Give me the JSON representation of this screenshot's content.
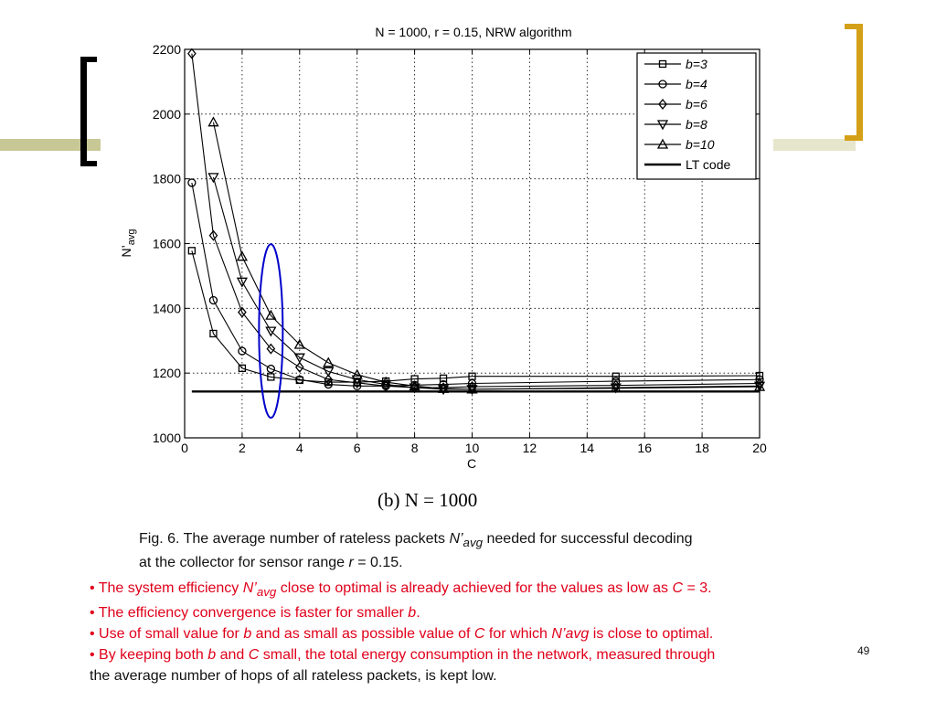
{
  "caption_sub": "(b) N = 1000",
  "figure_caption": {
    "line1_pre": "Fig. 6. The average number of rateless packets ",
    "line1_var": "N’",
    "line1_sub": "avg",
    "line1_post": " needed for successful decoding",
    "line2_pre": "at the collector for sensor range ",
    "line2_var": "r",
    "line2_post": " = 0.15."
  },
  "bullets": [
    {
      "parts": [
        {
          "t": "• The system efficiency "
        },
        {
          "t": "N’",
          "i": true
        },
        {
          "t": "avg",
          "i": true,
          "sub": true
        },
        {
          "t": " close to optimal is already achieved for the values as low as "
        },
        {
          "t": "C",
          "i": true
        },
        {
          "t": " = 3."
        }
      ]
    },
    {
      "parts": [
        {
          "t": "• The efficiency convergence is faster for smaller "
        },
        {
          "t": "b",
          "i": true
        },
        {
          "t": "."
        }
      ]
    },
    {
      "parts": [
        {
          "t": "• Use of small value for "
        },
        {
          "t": "b",
          "i": true
        },
        {
          "t": " and as small as possible value of "
        },
        {
          "t": "C",
          "i": true
        },
        {
          "t": " for which "
        },
        {
          "t": "N’avg",
          "i": true
        },
        {
          "t": " is close to optimal."
        }
      ]
    },
    {
      "parts": [
        {
          "t": "• By keeping both "
        },
        {
          "t": "b",
          "i": true
        },
        {
          "t": " and "
        },
        {
          "t": "C",
          "i": true
        },
        {
          "t": " small, the total energy consumption in the network, measured through"
        }
      ]
    },
    {
      "black": true,
      "parts": [
        {
          "t": "the average number of hops of all rateless packets, is kept low."
        }
      ]
    }
  ],
  "page_number": "49",
  "chart_data": {
    "type": "line",
    "title": "N = 1000, r = 0.15, NRW algorithm",
    "xlabel": "C",
    "ylabel": "N’avg",
    "xlim": [
      0,
      20
    ],
    "ylim": [
      1000,
      2200
    ],
    "xticks": [
      0,
      2,
      4,
      6,
      8,
      10,
      12,
      14,
      16,
      18,
      20
    ],
    "yticks": [
      1000,
      1200,
      1400,
      1600,
      1800,
      2000,
      2200
    ],
    "grid": true,
    "legend_position": "top-right",
    "series": [
      {
        "name": "b=3",
        "marker": "square",
        "x": [
          0.25,
          1,
          2,
          3,
          4,
          5,
          6,
          7,
          8,
          9,
          10,
          15,
          20
        ],
        "y": [
          1578,
          1322,
          1215,
          1188,
          1178,
          1172,
          1172,
          1175,
          1182,
          1184,
          1190,
          1190,
          1192
        ]
      },
      {
        "name": "b=4",
        "marker": "circle",
        "x": [
          0.25,
          1,
          2,
          3,
          4,
          5,
          6,
          7,
          8,
          9,
          10,
          15,
          20
        ],
        "y": [
          1788,
          1425,
          1268,
          1213,
          1180,
          1165,
          1160,
          1160,
          1163,
          1165,
          1168,
          1175,
          1180
        ]
      },
      {
        "name": "b=6",
        "marker": "diamond",
        "x": [
          0.25,
          1,
          2,
          3,
          4,
          5,
          6,
          7,
          8,
          9,
          10,
          15,
          20
        ],
        "y": [
          2187,
          1625,
          1388,
          1275,
          1218,
          1180,
          1170,
          1160,
          1155,
          1155,
          1158,
          1162,
          1168
        ]
      },
      {
        "name": "b=8",
        "marker": "triangle-down",
        "x": [
          1,
          2,
          3,
          4,
          5,
          6,
          7,
          8,
          9,
          10,
          15,
          20
        ],
        "y": [
          1805,
          1482,
          1330,
          1248,
          1205,
          1180,
          1165,
          1155,
          1150,
          1150,
          1155,
          1160
        ]
      },
      {
        "name": "b=10",
        "marker": "triangle-up",
        "x": [
          1,
          2,
          3,
          4,
          5,
          6,
          7,
          8,
          9,
          10,
          15,
          20
        ],
        "y": [
          1975,
          1560,
          1378,
          1288,
          1232,
          1195,
          1172,
          1160,
          1152,
          1150,
          1153,
          1158
        ]
      },
      {
        "name": "LT code",
        "marker": "none",
        "thick": true,
        "x": [
          0.25,
          20
        ],
        "y": [
          1143,
          1143
        ]
      }
    ],
    "annotation": {
      "type": "ellipse",
      "color": "#0000cc",
      "center": [
        3,
        1330
      ]
    }
  }
}
